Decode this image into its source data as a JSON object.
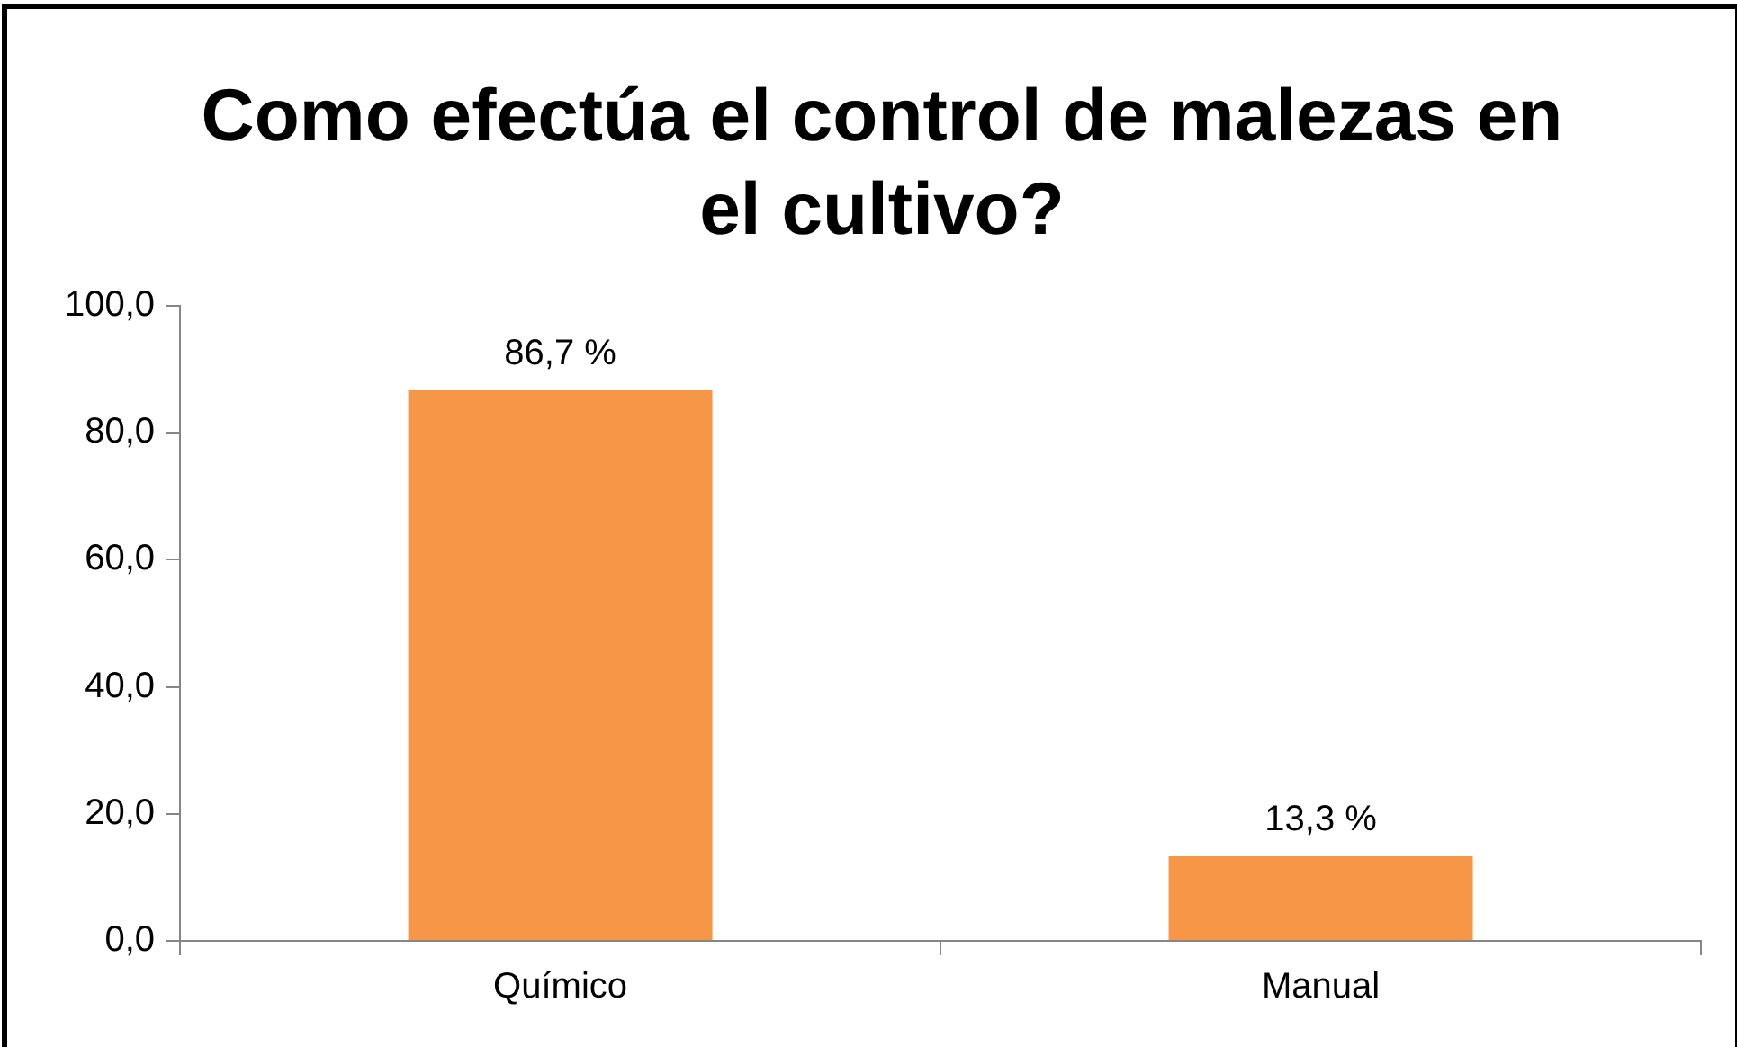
{
  "chart_data": {
    "type": "bar",
    "title": "Como efectúa el control de malezas en el cultivo?",
    "categories": [
      "Químico",
      "Manual"
    ],
    "values": [
      86.7,
      13.3
    ],
    "color": "#f79646",
    "value_labels": [
      "86,7 %",
      "13,3 %"
    ],
    "ylim": [
      0,
      100
    ],
    "yticks": [
      {
        "value": 0,
        "label": "0,0"
      },
      {
        "value": 20,
        "label": "20,0"
      },
      {
        "value": 40,
        "label": "40,0"
      },
      {
        "value": 60,
        "label": "60,0"
      },
      {
        "value": 80,
        "label": "80,0"
      },
      {
        "value": 100,
        "label": "100,0"
      }
    ]
  }
}
